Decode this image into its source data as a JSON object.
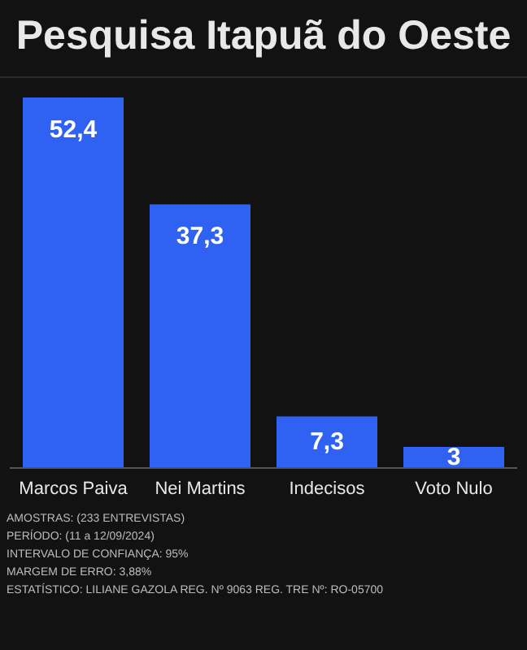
{
  "chart_data": {
    "type": "bar",
    "title": "Pesquisa Itapuã do Oeste",
    "categories": [
      "Marcos Paiva",
      "Nei Martins",
      "Indecisos",
      "Voto Nulo"
    ],
    "values": [
      52.4,
      37.3,
      7.3,
      3
    ],
    "value_labels": [
      "52,4",
      "37,3",
      "7,3",
      "3"
    ],
    "color": "#2f62f2",
    "annotations": [
      "AMOSTRAS: (233 ENTREVISTAS)",
      "PERÍODO: (11 a 12/09/2024)",
      "INTERVALO DE CONFIANÇA: 95%",
      "MARGEM DE ERRO: 3,88%",
      "ESTATÍSTICO: LILIANE GAZOLA REG. Nº 9063 REG. TRE Nº: RO-05700"
    ]
  }
}
